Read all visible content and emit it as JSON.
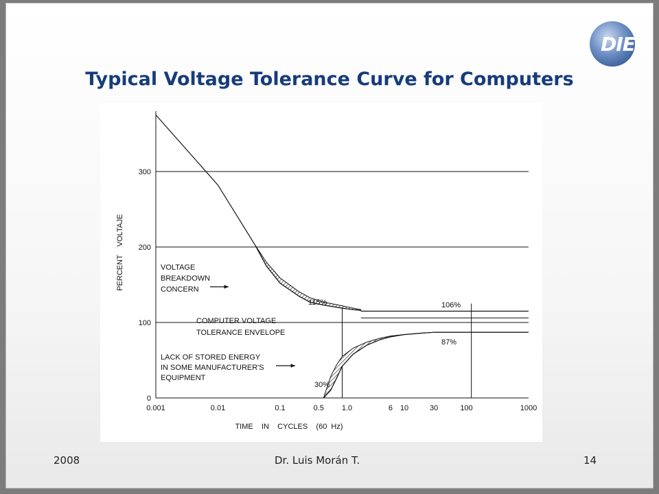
{
  "slide": {
    "title": "Typical Voltage Tolerance Curve for Computers"
  },
  "footer": {
    "left": "2008",
    "center": "Dr. Luis Morán T.",
    "right": "14"
  },
  "colors": {
    "title": "#173c7a",
    "logo_blue": "#5d7fb6",
    "background_gray": "#7c7c7c"
  },
  "logo": {
    "text": "DIE"
  },
  "chart_data": {
    "type": "line",
    "title": "",
    "xlabel": "TIME    IN    CYCLES    (60  Hz)",
    "ylabel": "PERCENT    VOLTAJE",
    "x_scale": "log",
    "xlim": [
      0.001,
      1000
    ],
    "ylim": [
      0,
      380
    ],
    "x_ticks": [
      0.001,
      0.01,
      0.1,
      0.5,
      1.0,
      6,
      10,
      30,
      100,
      1000
    ],
    "x_tick_labels": [
      "0.001",
      "0.01",
      "0.1",
      "0.5",
      "1.0",
      "6",
      "10",
      "30",
      "100",
      "1000"
    ],
    "y_ticks": [
      0,
      100,
      200,
      300
    ],
    "y_tick_labels": [
      "0",
      "100",
      "200",
      "300"
    ],
    "hlines": [
      100,
      115,
      106,
      87,
      200,
      300
    ],
    "vlines": [
      1.0,
      120
    ],
    "series": [
      {
        "role": "upper",
        "x": [
          0.001,
          0.01,
          0.04,
          0.06,
          0.1,
          0.2,
          0.3,
          0.5,
          1.0,
          1.5,
          2.0
        ],
        "values": [
          375,
          282,
          202,
          175,
          152,
          135,
          127,
          123,
          119,
          117,
          116
        ]
      },
      {
        "role": "lower",
        "x": [
          0.5,
          0.65,
          0.8,
          1.0,
          1.5,
          2.5,
          4,
          6,
          10,
          20,
          30
        ],
        "values": [
          0,
          10,
          25,
          42,
          58,
          70,
          77,
          81,
          84,
          86,
          87
        ]
      },
      {
        "role": "upper_limit_long_term",
        "x": [
          2.0,
          1000
        ],
        "values": [
          115,
          115
        ]
      },
      {
        "role": "lower_limit_long_term",
        "x": [
          30,
          1000
        ],
        "values": [
          87,
          87
        ]
      }
    ],
    "hatched_regions": [
      {
        "label": "voltage breakdown concern",
        "x": [
          0.04,
          0.06,
          0.1,
          0.2,
          0.3,
          0.5,
          1.0,
          1.5,
          2.0
        ],
        "upper": [
          202,
          180,
          159,
          141,
          133,
          127,
          122,
          119,
          117
        ],
        "lower": [
          202,
          175,
          152,
          135,
          127,
          123,
          119,
          117,
          116
        ]
      },
      {
        "label": "lack of stored energy",
        "x": [
          0.5,
          0.65,
          0.8,
          1.0,
          1.5,
          2.5,
          4,
          6,
          10,
          20,
          30
        ],
        "upper": [
          0,
          28,
          43,
          55,
          66,
          74,
          79,
          82,
          84,
          86,
          87
        ],
        "lower": [
          0,
          10,
          25,
          42,
          58,
          70,
          77,
          81,
          84,
          86,
          87
        ]
      }
    ],
    "annotations": [
      {
        "id": "voltage_breakdown",
        "lines": [
          "VOLTAGE",
          "BREAKDOWN",
          "CONCERN"
        ]
      },
      {
        "id": "envelope",
        "lines": [
          "COMPUTER VOLTAGE",
          "TOLERANCE ENVELOPE"
        ]
      },
      {
        "id": "stored_energy",
        "lines": [
          "LACK OF STORED ENERGY",
          "IN SOME MANUFACTURER'S",
          "EQUIPMENT"
        ]
      },
      {
        "id": "pct_115",
        "lines": [
          "115%"
        ]
      },
      {
        "id": "pct_106",
        "lines": [
          "106%"
        ]
      },
      {
        "id": "pct_87",
        "lines": [
          "87%"
        ]
      },
      {
        "id": "pct_30",
        "lines": [
          "30%"
        ]
      }
    ]
  }
}
